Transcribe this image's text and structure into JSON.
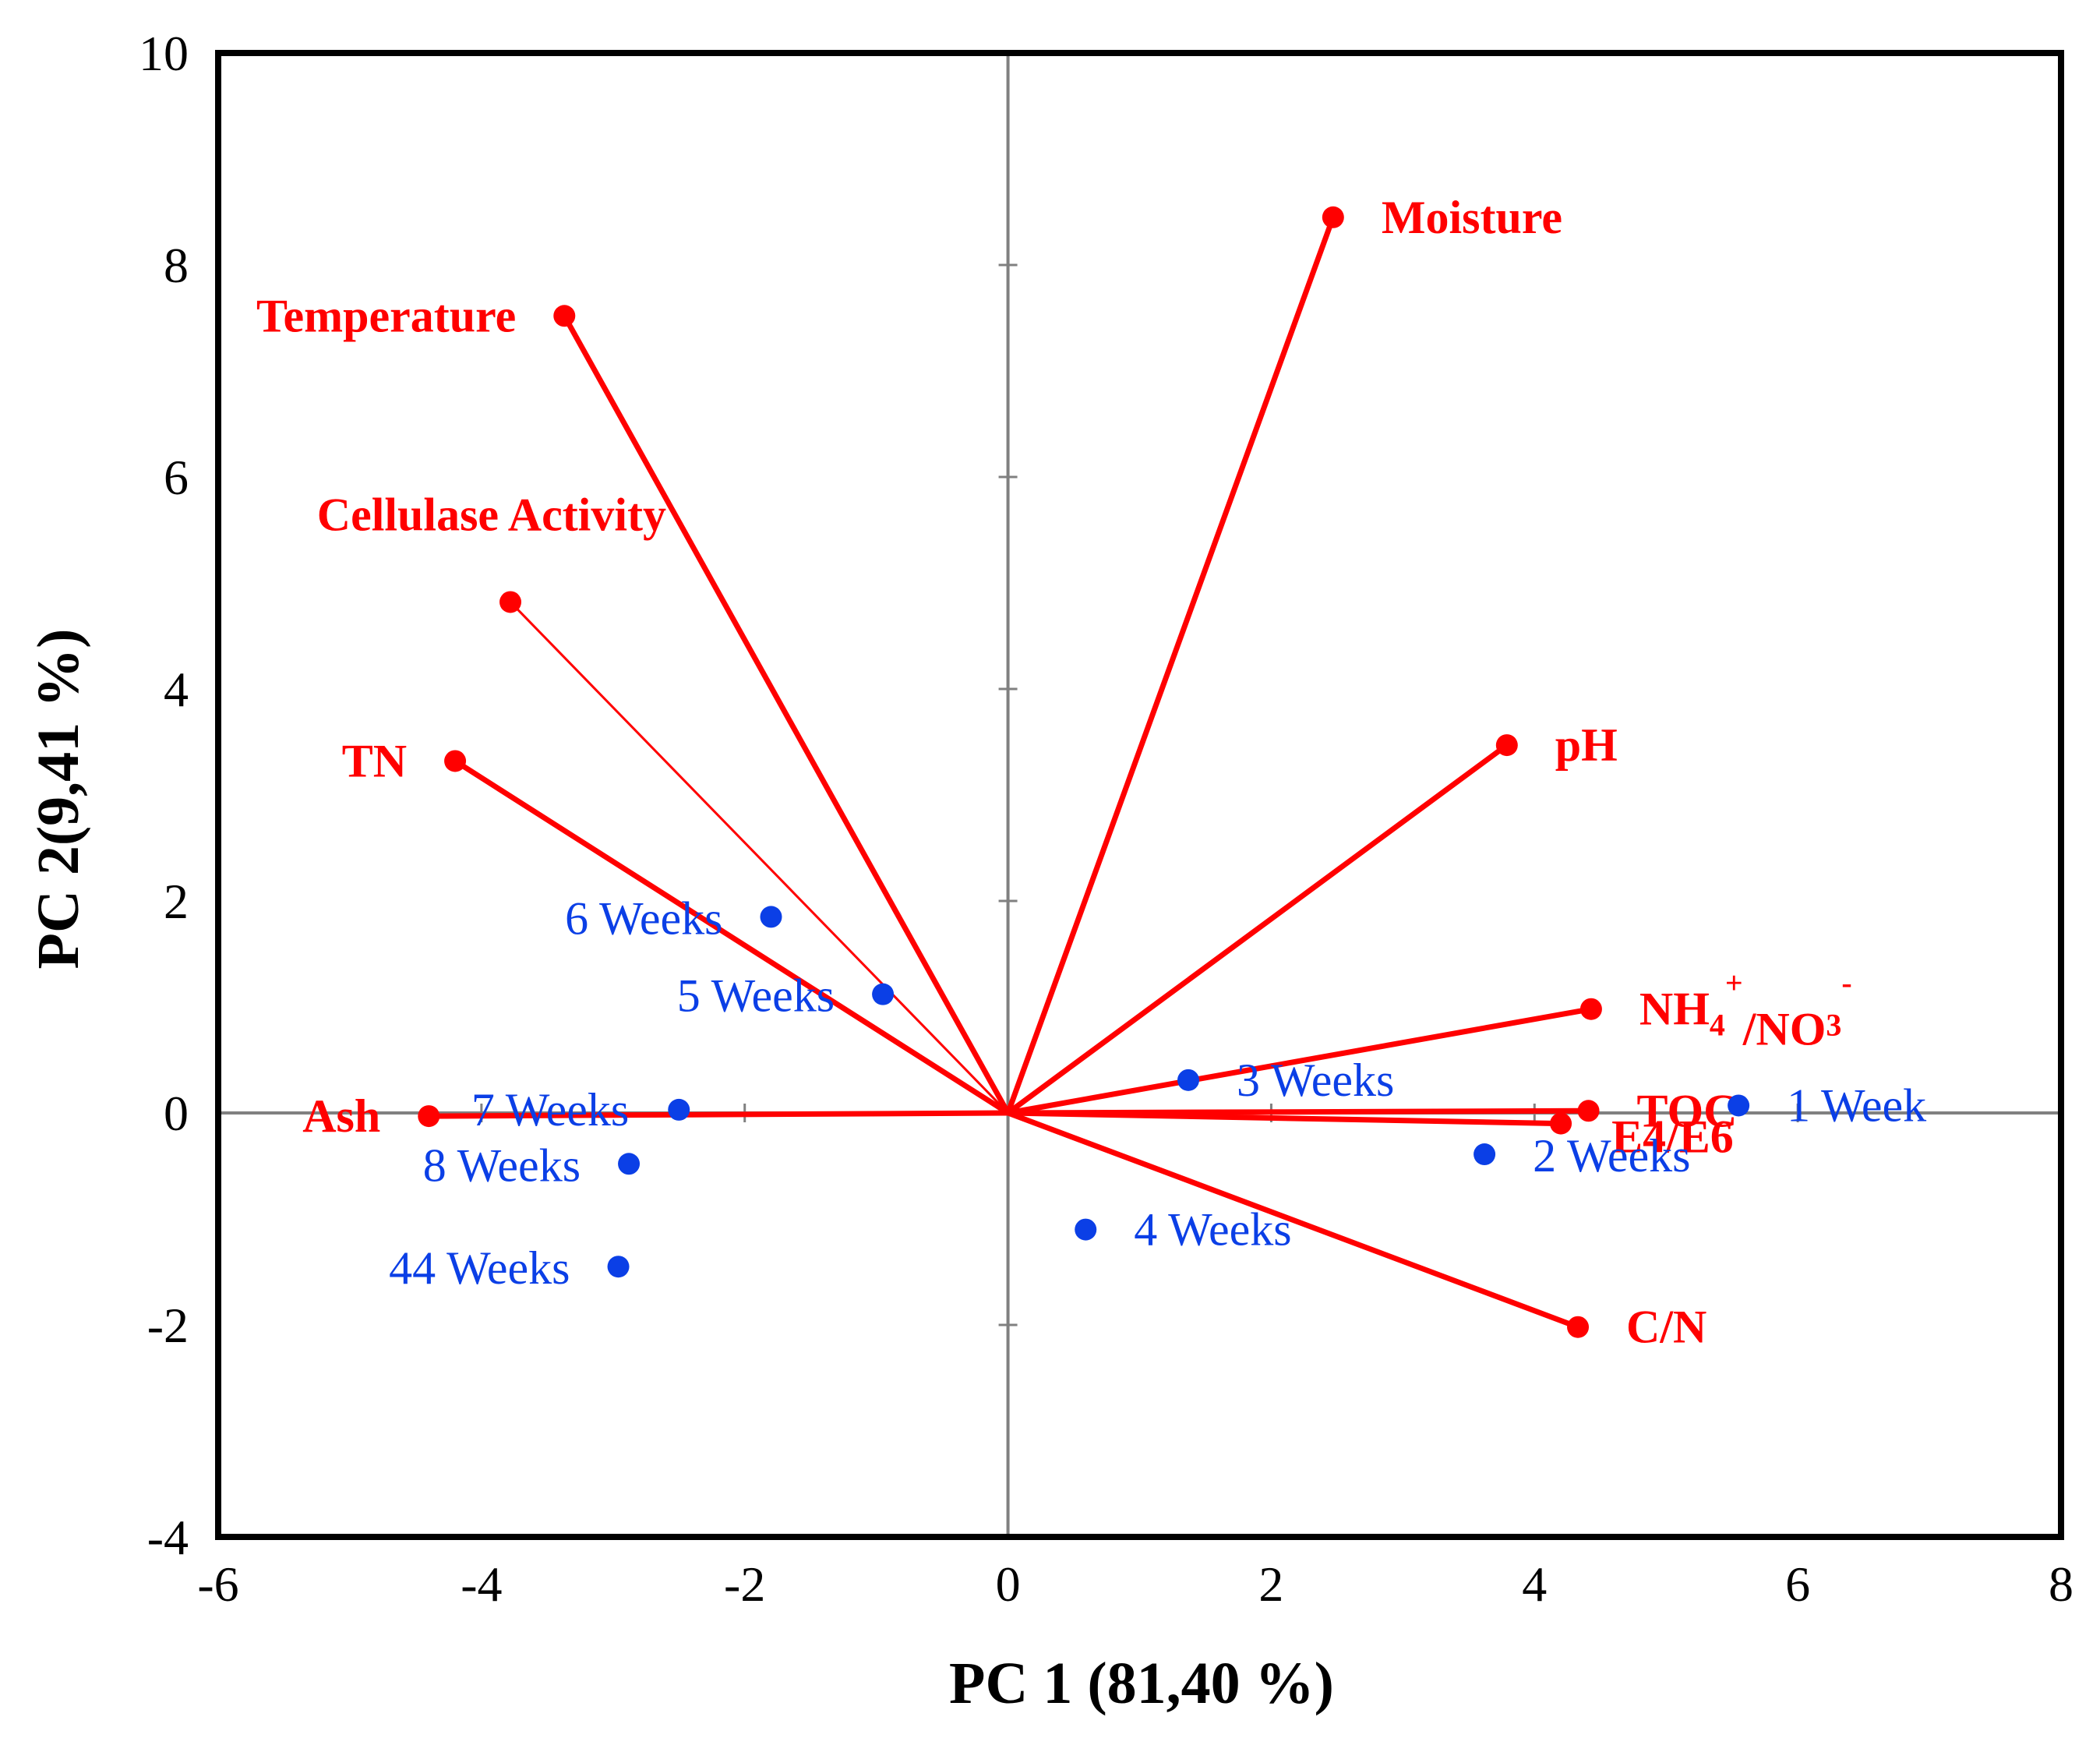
{
  "chart_data": {
    "type": "scatter",
    "subtype": "pca-biplot",
    "title": "",
    "xlabel": "PC 1 (81,40 %)",
    "ylabel": "PC 2(9,41 %)",
    "xlim": [
      -6,
      8
    ],
    "ylim": [
      -4,
      10
    ],
    "x_ticks": [
      -6,
      -4,
      -2,
      0,
      2,
      4,
      6,
      8
    ],
    "y_ticks": [
      -4,
      -2,
      0,
      2,
      4,
      6,
      8,
      10
    ],
    "x_tick_labels": [
      "-6",
      "-4",
      "-2",
      "0",
      "2",
      "4",
      "6",
      "8"
    ],
    "y_tick_labels": [
      "-4",
      "-2",
      "0",
      "2",
      "4",
      "6",
      "8",
      "10"
    ],
    "grid": false,
    "colors": {
      "variables": "#ff0000",
      "samples": "#0b3fe6",
      "axes": "#808080",
      "frame": "#000000"
    },
    "variables": [
      {
        "name": "Moisture",
        "x": 2.47,
        "y": 8.45,
        "weight": "bold"
      },
      {
        "name": "Temperature",
        "x": -3.37,
        "y": 7.52,
        "weight": "bold"
      },
      {
        "name": "Cellulase Activity",
        "x": -3.78,
        "y": 4.82,
        "weight": "thin"
      },
      {
        "name": "TN",
        "x": -4.2,
        "y": 3.32,
        "weight": "bold"
      },
      {
        "name": "pH",
        "x": 3.79,
        "y": 3.47,
        "weight": "bold"
      },
      {
        "name": "NH4+/NO3-",
        "x": 4.43,
        "y": 0.98,
        "weight": "bold"
      },
      {
        "name": "TOC",
        "x": 4.41,
        "y": 0.02,
        "weight": "bold"
      },
      {
        "name": "E4/E6",
        "x": 4.2,
        "y": -0.1,
        "weight": "bold"
      },
      {
        "name": "C/N",
        "x": 4.33,
        "y": -2.02,
        "weight": "bold"
      },
      {
        "name": "Ash",
        "x": -4.4,
        "y": -0.03,
        "weight": "bold"
      }
    ],
    "samples": [
      {
        "name": "1 Week",
        "x": 5.55,
        "y": 0.07
      },
      {
        "name": "2 Weeks",
        "x": 3.62,
        "y": -0.39
      },
      {
        "name": "3 Weeks",
        "x": 1.37,
        "y": 0.31
      },
      {
        "name": "4 Weeks",
        "x": 0.59,
        "y": -1.1
      },
      {
        "name": "5 Weeks",
        "x": -0.95,
        "y": 1.12
      },
      {
        "name": "6 Weeks",
        "x": -1.8,
        "y": 1.85
      },
      {
        "name": "7 Weeks",
        "x": -2.5,
        "y": 0.03
      },
      {
        "name": "8 Weeks",
        "x": -2.88,
        "y": -0.48
      },
      {
        "name": "44 Weeks",
        "x": -2.96,
        "y": -1.45
      }
    ],
    "nh4_label": {
      "base1": "NH",
      "sub1": "4",
      "sup1": "+",
      "base2": "/NO",
      "sub2": "3",
      "sup2": "-"
    }
  }
}
